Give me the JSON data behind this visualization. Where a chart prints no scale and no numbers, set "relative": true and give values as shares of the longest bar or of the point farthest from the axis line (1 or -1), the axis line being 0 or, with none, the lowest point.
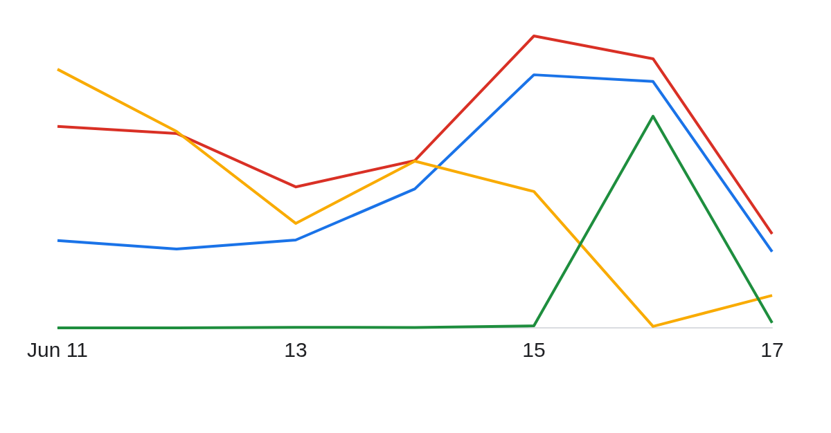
{
  "chart_data": {
    "type": "line",
    "relative": true,
    "categories": [
      "Jun 11",
      null,
      "13",
      null,
      "15",
      null,
      "17"
    ],
    "marker": "none",
    "series": [
      {
        "color": "#d93025",
        "values": [
          0.69,
          0.666,
          0.483,
          0.573,
          1,
          0.922,
          0.322
        ]
      },
      {
        "color": "#1a73e8",
        "values": [
          0.299,
          0.27,
          0.301,
          0.476,
          0.867,
          0.844,
          0.261
        ]
      },
      {
        "color": "#f9ab00",
        "values": [
          0.886,
          0.673,
          0.358,
          0.571,
          0.467,
          0.005,
          0.111
        ]
      },
      {
        "color": "#1e8e3e",
        "values": [
          0,
          0,
          0.002,
          0.001,
          0.007,
          0.725,
          0.017
        ]
      }
    ]
  }
}
